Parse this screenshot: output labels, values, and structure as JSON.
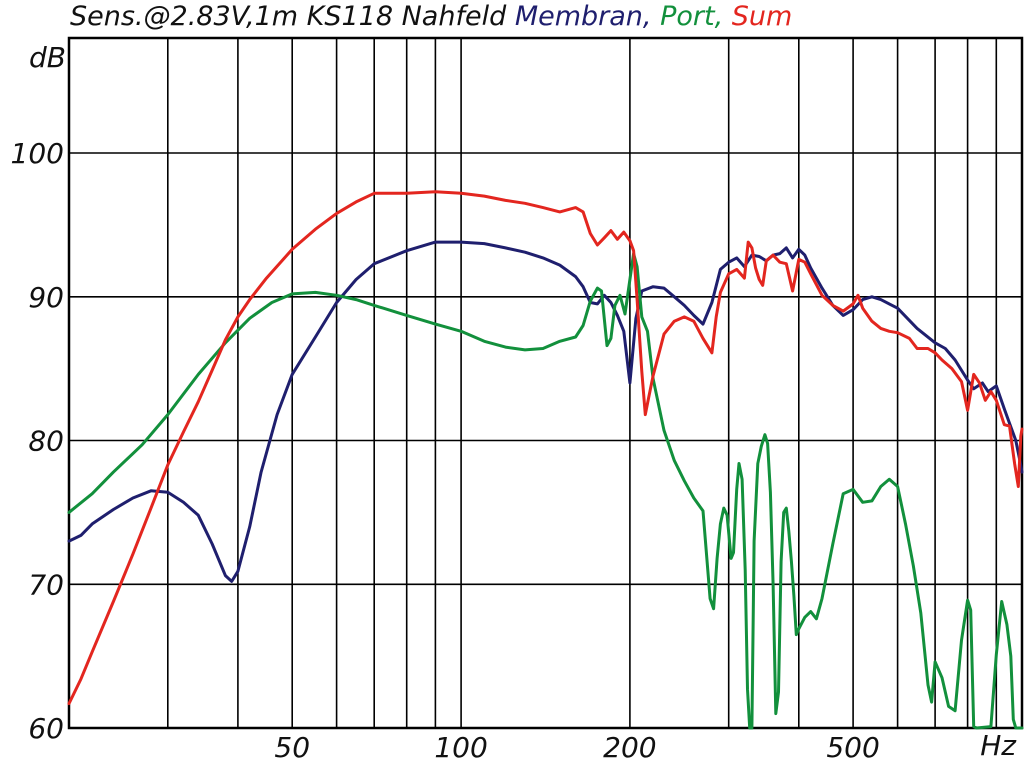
{
  "chart_data": {
    "type": "line",
    "title_parts": [
      {
        "text": "Sens.@2.83V,1m  KS118 Nahfeld ",
        "color": "#111111"
      },
      {
        "text": "Membran, ",
        "color": "#1f1f6e"
      },
      {
        "text": "Port, ",
        "color": "#12903c"
      },
      {
        "text": "Sum",
        "color": "#e3261f"
      }
    ],
    "ylabel": "dB",
    "xlabel": "Hz",
    "x_scale": "log",
    "xlim": [
      20,
      1000
    ],
    "ylim": [
      60,
      108
    ],
    "x_tick_labels": [
      {
        "value": 50,
        "label": "50"
      },
      {
        "value": 100,
        "label": "100"
      },
      {
        "value": 200,
        "label": "200"
      },
      {
        "value": 500,
        "label": "500"
      }
    ],
    "y_tick_labels": [
      {
        "value": 60,
        "label": "60"
      },
      {
        "value": 70,
        "label": "70"
      },
      {
        "value": 80,
        "label": "80"
      },
      {
        "value": 90,
        "label": "90"
      },
      {
        "value": 100,
        "label": "100"
      }
    ],
    "x_gridlines": [
      30,
      40,
      50,
      60,
      70,
      80,
      90,
      100,
      200,
      300,
      400,
      500,
      600,
      700,
      800,
      900
    ],
    "y_gridlines": [
      70,
      80,
      90,
      100
    ],
    "grid": true,
    "series": [
      {
        "name": "Membran",
        "color": "#1f1f6e",
        "points": [
          [
            20,
            73
          ],
          [
            21,
            73.4
          ],
          [
            22,
            74.2
          ],
          [
            24,
            75.2
          ],
          [
            26,
            76
          ],
          [
            28,
            76.5
          ],
          [
            30,
            76.4
          ],
          [
            32,
            75.7
          ],
          [
            34,
            74.8
          ],
          [
            36,
            72.8
          ],
          [
            38,
            70.6
          ],
          [
            39,
            70.2
          ],
          [
            40,
            70.9
          ],
          [
            42,
            74
          ],
          [
            44,
            77.8
          ],
          [
            47,
            81.8
          ],
          [
            50,
            84.6
          ],
          [
            55,
            87.2
          ],
          [
            60,
            89.6
          ],
          [
            65,
            91.2
          ],
          [
            70,
            92.3
          ],
          [
            80,
            93.2
          ],
          [
            90,
            93.8
          ],
          [
            100,
            93.8
          ],
          [
            110,
            93.7
          ],
          [
            120,
            93.4
          ],
          [
            130,
            93.1
          ],
          [
            140,
            92.7
          ],
          [
            150,
            92.2
          ],
          [
            160,
            91.4
          ],
          [
            165,
            90.7
          ],
          [
            170,
            89.6
          ],
          [
            175,
            89.5
          ],
          [
            180,
            90.1
          ],
          [
            185,
            89.6
          ],
          [
            190,
            88.7
          ],
          [
            195,
            87.6
          ],
          [
            200,
            84
          ],
          [
            205,
            88.5
          ],
          [
            210,
            90.4
          ],
          [
            220,
            90.7
          ],
          [
            230,
            90.6
          ],
          [
            240,
            90
          ],
          [
            250,
            89.4
          ],
          [
            260,
            88.7
          ],
          [
            270,
            88.1
          ],
          [
            280,
            89.6
          ],
          [
            290,
            91.9
          ],
          [
            300,
            92.4
          ],
          [
            310,
            92.7
          ],
          [
            320,
            92.1
          ],
          [
            330,
            92.9
          ],
          [
            340,
            92.8
          ],
          [
            350,
            92.5
          ],
          [
            360,
            92.9
          ],
          [
            370,
            93
          ],
          [
            380,
            93.4
          ],
          [
            390,
            92.7
          ],
          [
            400,
            93.3
          ],
          [
            410,
            92.9
          ],
          [
            420,
            92
          ],
          [
            440,
            90.6
          ],
          [
            460,
            89.4
          ],
          [
            480,
            88.7
          ],
          [
            500,
            89.1
          ],
          [
            520,
            89.8
          ],
          [
            540,
            90
          ],
          [
            560,
            89.8
          ],
          [
            600,
            89.2
          ],
          [
            650,
            87.8
          ],
          [
            700,
            86.8
          ],
          [
            730,
            86.4
          ],
          [
            760,
            85.6
          ],
          [
            800,
            84.2
          ],
          [
            820,
            83.6
          ],
          [
            850,
            84
          ],
          [
            870,
            83.4
          ],
          [
            900,
            83.8
          ],
          [
            930,
            82.2
          ],
          [
            950,
            81.2
          ],
          [
            975,
            80
          ],
          [
            990,
            78.7
          ],
          [
            1000,
            77.8
          ]
        ]
      },
      {
        "name": "Port",
        "color": "#12903c",
        "points": [
          [
            20,
            75
          ],
          [
            22,
            76.3
          ],
          [
            24,
            77.8
          ],
          [
            27,
            79.7
          ],
          [
            30,
            81.8
          ],
          [
            34,
            84.6
          ],
          [
            38,
            86.8
          ],
          [
            42,
            88.5
          ],
          [
            46,
            89.6
          ],
          [
            50,
            90.2
          ],
          [
            55,
            90.3
          ],
          [
            60,
            90.1
          ],
          [
            65,
            89.8
          ],
          [
            70,
            89.4
          ],
          [
            80,
            88.7
          ],
          [
            90,
            88.1
          ],
          [
            100,
            87.6
          ],
          [
            110,
            86.9
          ],
          [
            120,
            86.5
          ],
          [
            130,
            86.3
          ],
          [
            140,
            86.4
          ],
          [
            150,
            86.9
          ],
          [
            160,
            87.2
          ],
          [
            165,
            88
          ],
          [
            170,
            89.7
          ],
          [
            175,
            90.6
          ],
          [
            178,
            90.4
          ],
          [
            182,
            86.6
          ],
          [
            185,
            87.1
          ],
          [
            188,
            89.4
          ],
          [
            192,
            90.1
          ],
          [
            196,
            88.8
          ],
          [
            200,
            91.2
          ],
          [
            203,
            93
          ],
          [
            206,
            92.1
          ],
          [
            210,
            88.6
          ],
          [
            215,
            87.6
          ],
          [
            220,
            84.3
          ],
          [
            230,
            80.7
          ],
          [
            240,
            78.6
          ],
          [
            250,
            77.2
          ],
          [
            260,
            76
          ],
          [
            270,
            75.1
          ],
          [
            278,
            69
          ],
          [
            282,
            68.3
          ],
          [
            286,
            71.8
          ],
          [
            290,
            74.2
          ],
          [
            294,
            75.3
          ],
          [
            298,
            74.8
          ],
          [
            303,
            71.8
          ],
          [
            306,
            72.2
          ],
          [
            310,
            76.6
          ],
          [
            313,
            78.4
          ],
          [
            317,
            77.3
          ],
          [
            321,
            71
          ],
          [
            324,
            62.7
          ],
          [
            327,
            60
          ],
          [
            330,
            60
          ],
          [
            333,
            73
          ],
          [
            338,
            78.4
          ],
          [
            343,
            79.6
          ],
          [
            348,
            80.4
          ],
          [
            352,
            79.8
          ],
          [
            356,
            76.4
          ],
          [
            360,
            70
          ],
          [
            364,
            61
          ],
          [
            368,
            62.5
          ],
          [
            372,
            71.6
          ],
          [
            376,
            75
          ],
          [
            380,
            75.3
          ],
          [
            384,
            73.7
          ],
          [
            388,
            71.6
          ],
          [
            392,
            69.2
          ],
          [
            396,
            66.5
          ],
          [
            400,
            66.9
          ],
          [
            410,
            67.7
          ],
          [
            420,
            68.1
          ],
          [
            430,
            67.6
          ],
          [
            440,
            69
          ],
          [
            460,
            72.8
          ],
          [
            480,
            76.3
          ],
          [
            500,
            76.6
          ],
          [
            520,
            75.7
          ],
          [
            540,
            75.8
          ],
          [
            560,
            76.8
          ],
          [
            580,
            77.3
          ],
          [
            600,
            76.8
          ],
          [
            620,
            74.2
          ],
          [
            640,
            71.3
          ],
          [
            660,
            68
          ],
          [
            670,
            65.5
          ],
          [
            680,
            63
          ],
          [
            690,
            61.8
          ],
          [
            700,
            64.6
          ],
          [
            720,
            63.5
          ],
          [
            740,
            61.5
          ],
          [
            760,
            61.2
          ],
          [
            780,
            66.1
          ],
          [
            800,
            68.9
          ],
          [
            810,
            68.2
          ],
          [
            820,
            60.1
          ],
          [
            830,
            60
          ],
          [
            880,
            60.1
          ],
          [
            900,
            65.1
          ],
          [
            920,
            68.8
          ],
          [
            940,
            67.2
          ],
          [
            955,
            65
          ],
          [
            965,
            60.6
          ],
          [
            975,
            60
          ],
          [
            1000,
            60
          ]
        ]
      },
      {
        "name": "Sum",
        "color": "#e3261f",
        "points": [
          [
            20,
            61.7
          ],
          [
            21,
            63.4
          ],
          [
            22,
            65.3
          ],
          [
            24,
            68.8
          ],
          [
            26,
            72.1
          ],
          [
            28,
            75.3
          ],
          [
            30,
            78.3
          ],
          [
            32,
            80.6
          ],
          [
            34,
            82.7
          ],
          [
            36,
            84.9
          ],
          [
            38,
            87
          ],
          [
            40,
            88.6
          ],
          [
            42,
            89.8
          ],
          [
            45,
            91.3
          ],
          [
            50,
            93.3
          ],
          [
            55,
            94.7
          ],
          [
            60,
            95.8
          ],
          [
            65,
            96.6
          ],
          [
            70,
            97.2
          ],
          [
            80,
            97.2
          ],
          [
            90,
            97.3
          ],
          [
            100,
            97.2
          ],
          [
            110,
            97
          ],
          [
            120,
            96.7
          ],
          [
            130,
            96.5
          ],
          [
            140,
            96.2
          ],
          [
            150,
            95.9
          ],
          [
            160,
            96.2
          ],
          [
            165,
            95.9
          ],
          [
            170,
            94.4
          ],
          [
            175,
            93.6
          ],
          [
            180,
            94.1
          ],
          [
            185,
            94.6
          ],
          [
            190,
            94
          ],
          [
            195,
            94.5
          ],
          [
            200,
            93.9
          ],
          [
            203,
            93.2
          ],
          [
            206,
            89.8
          ],
          [
            210,
            84.8
          ],
          [
            213,
            81.8
          ],
          [
            216,
            83
          ],
          [
            220,
            84.5
          ],
          [
            230,
            87.4
          ],
          [
            240,
            88.3
          ],
          [
            250,
            88.6
          ],
          [
            260,
            88.3
          ],
          [
            270,
            87.1
          ],
          [
            280,
            86.1
          ],
          [
            285,
            88.6
          ],
          [
            290,
            90.3
          ],
          [
            300,
            91.6
          ],
          [
            310,
            91.9
          ],
          [
            320,
            91.3
          ],
          [
            325,
            93.8
          ],
          [
            330,
            93.4
          ],
          [
            335,
            92
          ],
          [
            340,
            91.2
          ],
          [
            345,
            90.8
          ],
          [
            350,
            92.5
          ],
          [
            360,
            92.9
          ],
          [
            370,
            92.4
          ],
          [
            380,
            92.3
          ],
          [
            390,
            90.4
          ],
          [
            400,
            92.6
          ],
          [
            410,
            92.4
          ],
          [
            420,
            91.6
          ],
          [
            440,
            90.1
          ],
          [
            460,
            89.4
          ],
          [
            480,
            89
          ],
          [
            500,
            89.5
          ],
          [
            510,
            90.1
          ],
          [
            520,
            89.2
          ],
          [
            540,
            88.3
          ],
          [
            560,
            87.8
          ],
          [
            580,
            87.6
          ],
          [
            600,
            87.5
          ],
          [
            630,
            87.1
          ],
          [
            650,
            86.4
          ],
          [
            680,
            86.4
          ],
          [
            700,
            86.1
          ],
          [
            720,
            85.6
          ],
          [
            750,
            85
          ],
          [
            780,
            84.1
          ],
          [
            800,
            82.1
          ],
          [
            820,
            84.6
          ],
          [
            840,
            84
          ],
          [
            860,
            82.8
          ],
          [
            880,
            83.4
          ],
          [
            900,
            82.8
          ],
          [
            930,
            81.1
          ],
          [
            950,
            81
          ],
          [
            970,
            78.4
          ],
          [
            985,
            76.8
          ],
          [
            995,
            80.3
          ],
          [
            1000,
            80.8
          ]
        ]
      }
    ]
  }
}
